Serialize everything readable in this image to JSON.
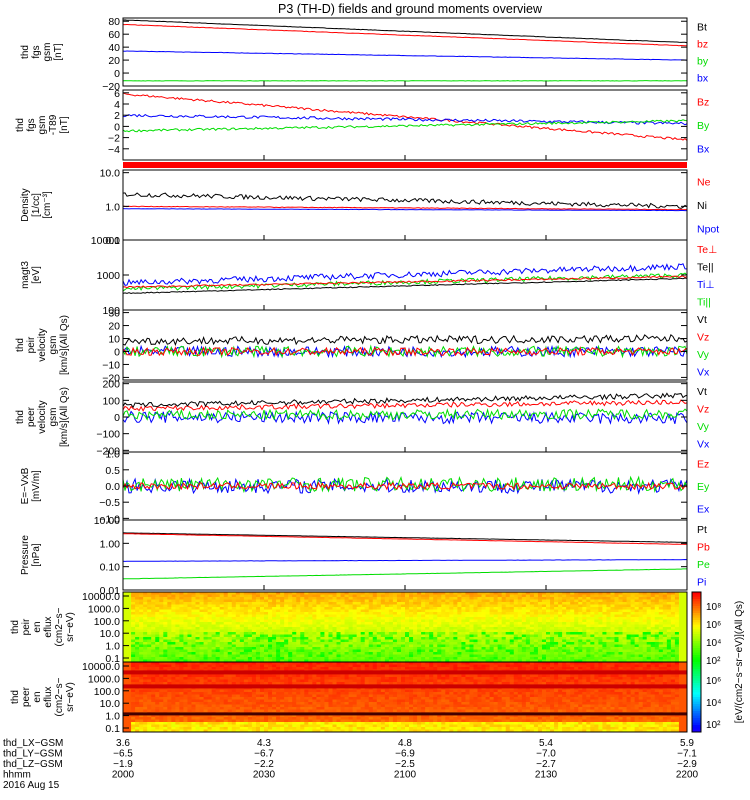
{
  "title": "P3 (TH-D) fields and ground moments overview",
  "colors": {
    "black": "#000000",
    "red": "#ff0000",
    "green": "#00dd00",
    "blue": "#0000ff"
  },
  "chart_data": {
    "type": "line",
    "panels": [
      {
        "id": "fgs-gsm",
        "ylabel": [
          "thd",
          "fgs",
          "gsm",
          "[nT]"
        ],
        "yticks": [
          "80",
          "60",
          "40",
          "20",
          "0",
          "−20"
        ],
        "ylim": [
          -20,
          85
        ],
        "legend": [
          {
            "text": "Bt",
            "color": "black"
          },
          {
            "text": "bz",
            "color": "red"
          },
          {
            "text": "by",
            "color": "green"
          },
          {
            "text": "bx",
            "color": "blue"
          }
        ],
        "series": [
          {
            "color": "black",
            "y_start": 82,
            "y_end": 47,
            "noise": 0.3
          },
          {
            "color": "red",
            "y_start": 75,
            "y_end": 42,
            "noise": 0.3
          },
          {
            "color": "blue",
            "y_start": 34,
            "y_end": 20,
            "noise": 0.3
          },
          {
            "color": "green",
            "y_start": -12,
            "y_end": -12,
            "noise": 0.3
          }
        ]
      },
      {
        "id": "fgs-gsm-t89",
        "ylabel": [
          "thd",
          "fgs",
          "gsm",
          "-T89",
          "[nT]"
        ],
        "yticks": [
          "6",
          "4",
          "2",
          "0",
          "−2",
          "−4"
        ],
        "ylim": [
          -6,
          6.5
        ],
        "legend": [
          {
            "text": "Bz",
            "color": "red"
          },
          {
            "text": "By",
            "color": "green"
          },
          {
            "text": "Bx",
            "color": "blue"
          }
        ],
        "series": [
          {
            "color": "red",
            "y_start": 5.8,
            "y_end": -2.4,
            "noise": 0.2
          },
          {
            "color": "blue",
            "y_start": 2.0,
            "y_end": 0.5,
            "noise": 0.25
          },
          {
            "color": "green",
            "y_start": -0.8,
            "y_end": 1.0,
            "noise": 0.2
          }
        ]
      },
      {
        "id": "density",
        "ylabel": [
          "Density",
          "[1/cc]",
          "[cm⁻³]"
        ],
        "yticks": [
          "10.0",
          "1.0",
          "0.1"
        ],
        "log": true,
        "ylim": [
          0.1,
          12
        ],
        "legend": [
          {
            "text": "Ne",
            "color": "red"
          },
          {
            "text": "Ni",
            "color": "black"
          },
          {
            "text": "Npot",
            "color": "blue"
          }
        ],
        "series": [
          {
            "color": "black",
            "y_start": 2.3,
            "y_end": 1.0,
            "noise": 0.15
          },
          {
            "color": "red",
            "y_start": 1.0,
            "y_end": 0.8,
            "noise": 0.02
          },
          {
            "color": "blue",
            "y_start": 0.85,
            "y_end": 0.75,
            "noise": 0.01
          }
        ]
      },
      {
        "id": "temperature",
        "ylabel": [
          "magt3",
          "[eV]"
        ],
        "yticks": [
          "10000",
          "1000",
          "100"
        ],
        "log": true,
        "ylim": [
          100,
          10000
        ],
        "legend": [
          {
            "text": "Te⊥",
            "color": "red"
          },
          {
            "text": "Te||",
            "color": "black"
          },
          {
            "text": "Ti⊥",
            "color": "blue"
          },
          {
            "text": "Ti||",
            "color": "green"
          }
        ],
        "series": [
          {
            "color": "blue",
            "y_start": 600,
            "y_end": 1800,
            "noise": 0.2
          },
          {
            "color": "green",
            "y_start": 400,
            "y_end": 1000,
            "noise": 0.15
          },
          {
            "color": "red",
            "y_start": 450,
            "y_end": 900,
            "noise": 0.05
          },
          {
            "color": "black",
            "y_start": 300,
            "y_end": 800,
            "noise": 0.03
          }
        ]
      },
      {
        "id": "peir-velocity",
        "ylabel": [
          "thd",
          "peir",
          "velocity",
          "gsm",
          "[km/s](All Qs)"
        ],
        "yticks": [
          "30",
          "20",
          "10",
          "0",
          "−10",
          "−20"
        ],
        "ylim": [
          -22,
          32
        ],
        "legend": [
          {
            "text": "Vt",
            "color": "black"
          },
          {
            "text": "Vz",
            "color": "red"
          },
          {
            "text": "Vy",
            "color": "green"
          },
          {
            "text": "Vx",
            "color": "blue"
          }
        ],
        "series": [
          {
            "color": "blue",
            "y_start": 0,
            "y_end": 0,
            "noise": 4
          },
          {
            "color": "green",
            "y_start": 0,
            "y_end": 0,
            "noise": 4
          },
          {
            "color": "red",
            "y_start": 0,
            "y_end": 0,
            "noise": 3
          },
          {
            "color": "black",
            "y_start": 8,
            "y_end": 10,
            "noise": 3
          }
        ]
      },
      {
        "id": "peer-velocity",
        "ylabel": [
          "thd",
          "peer",
          "velocity",
          "gsm",
          "[km/s](All Qs)"
        ],
        "yticks": [
          "200",
          "100",
          "0",
          "−100",
          "−200"
        ],
        "ylim": [
          -210,
          210
        ],
        "legend": [
          {
            "text": "Vt",
            "color": "black"
          },
          {
            "text": "Vz",
            "color": "red"
          },
          {
            "text": "Vy",
            "color": "green"
          },
          {
            "text": "Vx",
            "color": "blue"
          }
        ],
        "series": [
          {
            "color": "blue",
            "y_start": 0,
            "y_end": -10,
            "noise": 35
          },
          {
            "color": "green",
            "y_start": 10,
            "y_end": 20,
            "noise": 30
          },
          {
            "color": "red",
            "y_start": 50,
            "y_end": 90,
            "noise": 15
          },
          {
            "color": "black",
            "y_start": 70,
            "y_end": 130,
            "noise": 15
          }
        ]
      },
      {
        "id": "efield",
        "ylabel": [
          "E=−VxB",
          "[mV/m]"
        ],
        "yticks": [
          "1.0",
          "0.5",
          "0.0",
          "−0.5",
          "−1.0"
        ],
        "ylim": [
          -1.05,
          1.05
        ],
        "legend": [
          {
            "text": "Ez",
            "color": "red"
          },
          {
            "text": "Ey",
            "color": "green"
          },
          {
            "text": "Ex",
            "color": "blue"
          }
        ],
        "series": [
          {
            "color": "blue",
            "y_start": 0,
            "y_end": 0,
            "noise": 0.22
          },
          {
            "color": "green",
            "y_start": 0.05,
            "y_end": 0.05,
            "noise": 0.22
          },
          {
            "color": "red",
            "y_start": 0,
            "y_end": 0,
            "noise": 0.1
          }
        ]
      },
      {
        "id": "pressure",
        "ylabel": [
          "Pressure",
          "[nPa]"
        ],
        "yticks": [
          "10.00",
          "1.00",
          "0.10",
          "0.01"
        ],
        "log": true,
        "ylim": [
          0.01,
          10
        ],
        "legend": [
          {
            "text": "Pt",
            "color": "black"
          },
          {
            "text": "Pb",
            "color": "red"
          },
          {
            "text": "Pe",
            "color": "green"
          },
          {
            "text": "Pi",
            "color": "blue"
          }
        ],
        "series": [
          {
            "color": "black",
            "y_start": 2.8,
            "y_end": 1.1,
            "noise": 0.01
          },
          {
            "color": "red",
            "y_start": 2.6,
            "y_end": 0.9,
            "noise": 0.01
          },
          {
            "color": "blue",
            "y_start": 0.17,
            "y_end": 0.2,
            "noise": 0.01
          },
          {
            "color": "green",
            "y_start": 0.03,
            "y_end": 0.08,
            "noise": 0.01
          }
        ]
      }
    ],
    "spectrograms": [
      {
        "id": "peir-en-eflux",
        "ylabel": [
          "thd",
          "peir",
          "en",
          "eflux",
          "(cm2−s−",
          "sr−eV)"
        ],
        "yticks": [
          "10000.0",
          "1000.0",
          "100.0",
          "10.0",
          "1.0",
          "0.1"
        ]
      },
      {
        "id": "peer-en-eflux",
        "ylabel": [
          "thd",
          "peer",
          "en",
          "eflux",
          "(cm2−s−",
          "sr−eV)"
        ],
        "yticks": [
          "10000.0",
          "1000.0",
          "100.0",
          "10.0",
          "1.0",
          "0.1"
        ]
      }
    ],
    "colorbar": {
      "label": "[eV/(cm2−s−sr−eV)](All Qs)",
      "top_ticks": [
        "10⁸",
        "10⁶",
        "10⁴",
        "10²"
      ],
      "bottom_ticks": [
        "10⁶",
        "10⁴",
        "10²"
      ]
    },
    "xaxis": {
      "row_labels": [
        "thd_LX−GSM",
        "thd_LY−GSM",
        "thd_LZ−GSM",
        "hhmm",
        "2016 Aug 15"
      ],
      "columns": [
        [
          "3.6",
          "−6.5",
          "−1.9",
          "2000"
        ],
        [
          "4.3",
          "−6.7",
          "−2.2",
          "2030"
        ],
        [
          "4.8",
          "−6.9",
          "−2.5",
          "2100"
        ],
        [
          "5.4",
          "−7.0",
          "−2.7",
          "2130"
        ],
        [
          "5.9",
          "−7.1",
          "−2.9",
          "2200"
        ]
      ]
    }
  }
}
